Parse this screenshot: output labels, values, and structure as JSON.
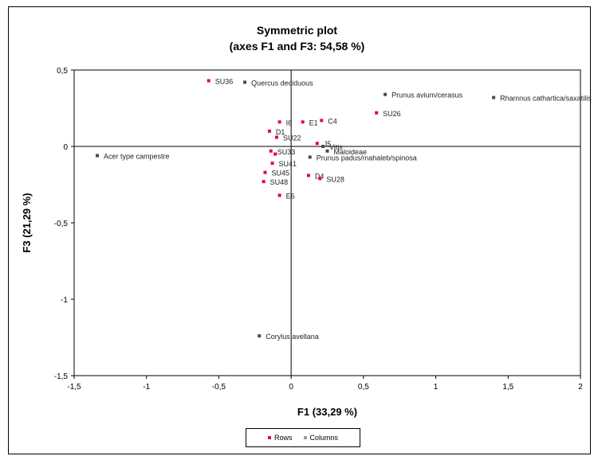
{
  "chart_data": {
    "type": "scatter",
    "title": "Symmetric plot",
    "subtitle": "(axes F1 and F3: 54,58 %)",
    "xlabel": "F1 (33,29 %)",
    "ylabel": "F3 (21,29 %)",
    "xlim": [
      -1.5,
      2
    ],
    "ylim": [
      -1.5,
      0.5
    ],
    "xticks": [
      -1.5,
      -1,
      -0.5,
      0,
      0.5,
      1,
      1.5,
      2
    ],
    "xtick_labels": [
      "-1,5",
      "-1",
      "-0,5",
      "0",
      "0,5",
      "1",
      "1,5",
      "2"
    ],
    "yticks": [
      -1.5,
      -1,
      -0.5,
      0,
      0.5
    ],
    "ytick_labels": [
      "-1,5",
      "-1",
      "-0,5",
      "0",
      "0,5"
    ],
    "grid": false,
    "legend_position": "bottom",
    "series": [
      {
        "name": "Rows",
        "color": "#e8004c",
        "points": [
          {
            "x": -0.57,
            "y": 0.43,
            "label": "SU36"
          },
          {
            "x": 0.59,
            "y": 0.22,
            "label": "SU26"
          },
          {
            "x": -0.08,
            "y": 0.16,
            "label": "I6"
          },
          {
            "x": 0.08,
            "y": 0.16,
            "label": "E1"
          },
          {
            "x": 0.21,
            "y": 0.17,
            "label": "C4"
          },
          {
            "x": -0.15,
            "y": 0.1,
            "label": "D1"
          },
          {
            "x": -0.1,
            "y": 0.06,
            "label": "SU22"
          },
          {
            "x": 0.18,
            "y": 0.02,
            "label": "J5"
          },
          {
            "x": -0.14,
            "y": -0.03,
            "label": "SU33"
          },
          {
            "x": -0.11,
            "y": -0.05,
            "label": ""
          },
          {
            "x": -0.13,
            "y": -0.11,
            "label": "SU41"
          },
          {
            "x": -0.18,
            "y": -0.17,
            "label": "SU45"
          },
          {
            "x": -0.19,
            "y": -0.23,
            "label": "SU48"
          },
          {
            "x": 0.12,
            "y": -0.19,
            "label": "D4"
          },
          {
            "x": 0.2,
            "y": -0.21,
            "label": "SU28"
          },
          {
            "x": -0.08,
            "y": -0.32,
            "label": "E6"
          }
        ]
      },
      {
        "name": "Columns",
        "color": "#4a4a4a",
        "points": [
          {
            "x": -1.34,
            "y": -0.06,
            "label": "Acer type campestre"
          },
          {
            "x": -0.32,
            "y": 0.42,
            "label": "Quercus deciduous"
          },
          {
            "x": 0.65,
            "y": 0.34,
            "label": "Prunus avium/cerasus"
          },
          {
            "x": 1.4,
            "y": 0.32,
            "label": "Rhamnus cathartica/saxatilis"
          },
          {
            "x": 0.22,
            "y": 0.0,
            "label": "Vitis"
          },
          {
            "x": 0.25,
            "y": -0.03,
            "label": "Maloideae"
          },
          {
            "x": 0.13,
            "y": -0.07,
            "label": "Prunus padus/mahaleb/spinosa"
          },
          {
            "x": -0.22,
            "y": -1.24,
            "label": "Corylus avellana"
          }
        ]
      }
    ]
  },
  "labels": {
    "title": "Symmetric plot",
    "subtitle": "(axes F1 and F3: 54,58 %)",
    "xlabel": "F1 (33,29 %)",
    "ylabel": "F3 (21,29 %)",
    "legend_rows": "Rows",
    "legend_columns": "Columns"
  }
}
